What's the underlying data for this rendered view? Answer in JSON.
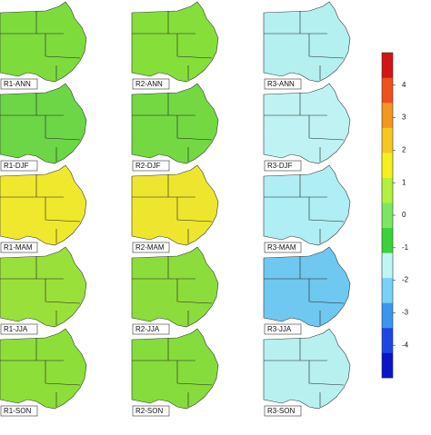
{
  "panels": [
    {
      "label": "R1-ANN",
      "color": "#7ddc3c"
    },
    {
      "label": "R2-ANN",
      "color": "#86de3a"
    },
    {
      "label": "R3-ANN",
      "color": "#b4f0f0"
    },
    {
      "label": "R1-DJF",
      "color": "#6cd646"
    },
    {
      "label": "R2-DJF",
      "color": "#74d843"
    },
    {
      "label": "R3-DJF",
      "color": "#bff3f3"
    },
    {
      "label": "R1-MAM",
      "color": "#f0e82c"
    },
    {
      "label": "R2-MAM",
      "color": "#eee62e"
    },
    {
      "label": "R3-MAM",
      "color": "#aeeef4"
    },
    {
      "label": "R1-JJA",
      "color": "#9ae03a"
    },
    {
      "label": "R2-JJA",
      "color": "#8cdc3c"
    },
    {
      "label": "R3-JJA",
      "color": "#6fc8f0"
    },
    {
      "label": "R1-SON",
      "color": "#8ede3a"
    },
    {
      "label": "R2-SON",
      "color": "#86dc3c"
    },
    {
      "label": "R3-SON",
      "color": "#b8f0f0"
    }
  ],
  "colorbar": {
    "lim": [
      -5,
      5
    ],
    "ticks": [
      4,
      3,
      2,
      1,
      0,
      -1,
      -2,
      -3,
      -4
    ],
    "colors": [
      "#0a14c8",
      "#1e46e6",
      "#3c96f0",
      "#78d2f5",
      "#bff5f5",
      "#3cd23c",
      "#7ee664",
      "#b4f03c",
      "#f5f01e",
      "#f5c81e",
      "#f5961e",
      "#f0501e",
      "#d21414"
    ]
  }
}
